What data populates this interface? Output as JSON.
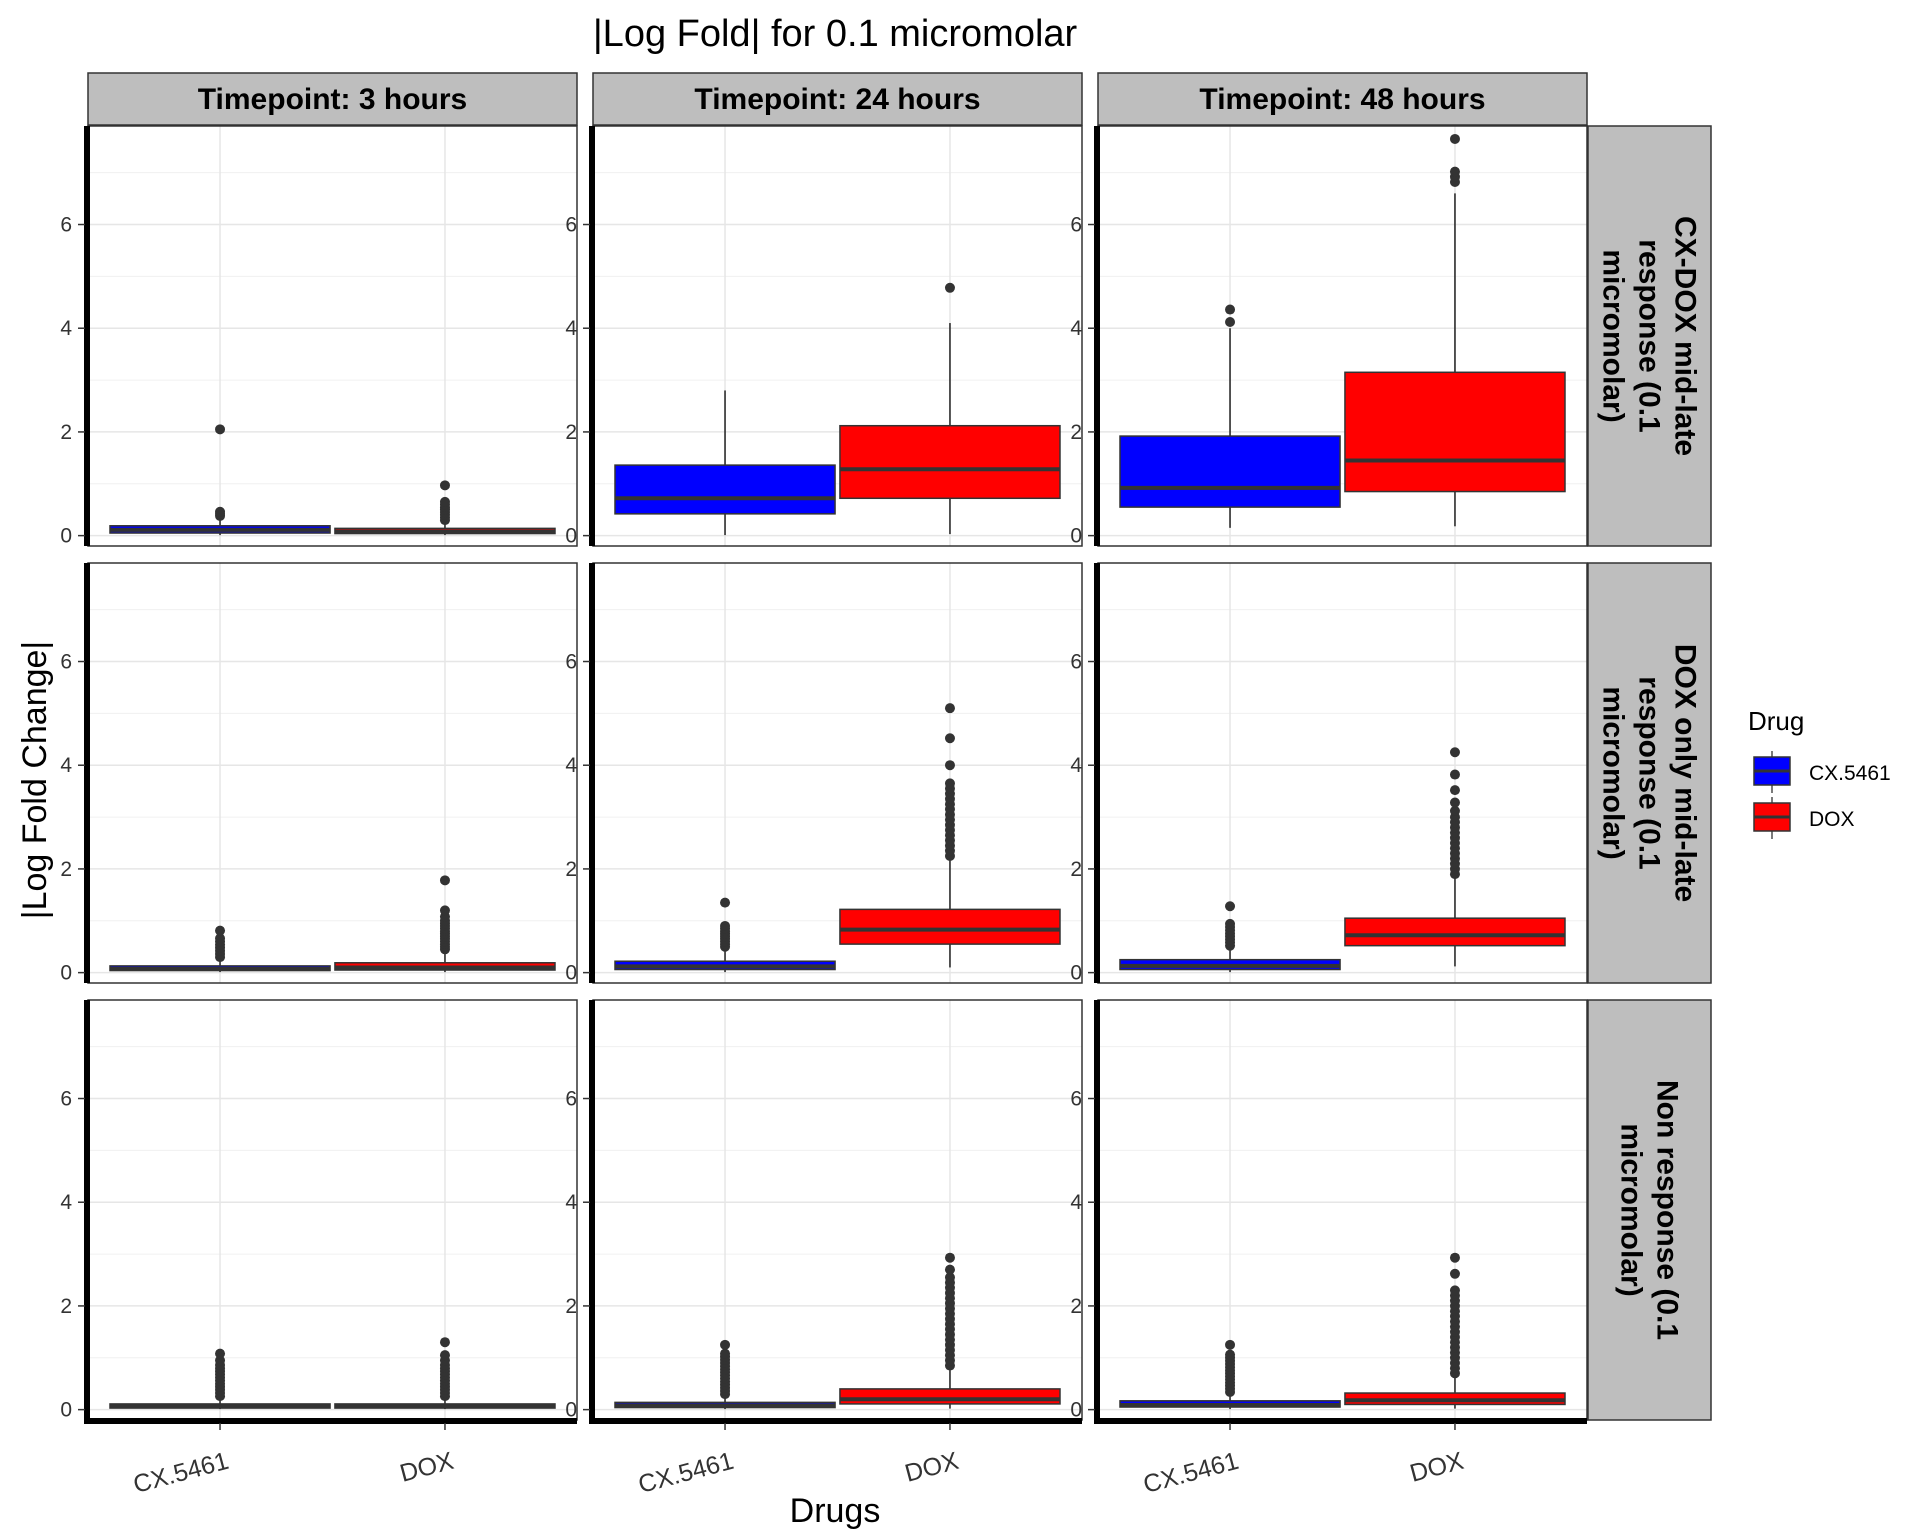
{
  "chart_data": {
    "type": "box",
    "title": "|Log Fold| for 0.1 micromolar",
    "xlabel": "Drugs",
    "ylabel": "|Log Fold Change|",
    "categories": [
      "CX.5461",
      "DOX"
    ],
    "y_ticks": [
      0,
      2,
      4,
      6
    ],
    "ylim": [
      -0.2,
      7.9
    ],
    "grid": true,
    "legend": {
      "title": "Drug",
      "position": "right",
      "items": [
        {
          "label": "CX.5461",
          "color": "#0000ff"
        },
        {
          "label": "DOX",
          "color": "#ff0000"
        }
      ]
    },
    "columns": [
      "Timepoint: 3 hours",
      "Timepoint: 24 hours",
      "Timepoint: 48 hours"
    ],
    "rows": [
      {
        "label": "CX-DOX mid-late response (0.1 micromolar)",
        "lines": [
          "CX-DOX mid-late",
          "response (0.1",
          "micromolar)"
        ]
      },
      {
        "label": "DOX only mid-late response (0.1 micromolar)",
        "lines": [
          "DOX only mid-late",
          "response (0.1",
          "micromolar)"
        ]
      },
      {
        "label": "Non response (0.1 micromolar)",
        "lines": [
          "Non response (0.1",
          "micromolar)"
        ]
      }
    ],
    "panels": [
      [
        [
          {
            "drug": "CX.5461",
            "min": 0.01,
            "q1": 0.05,
            "median": 0.11,
            "q3": 0.19,
            "max": 0.34,
            "outliers": [
              0.38,
              0.42,
              0.46,
              2.05
            ]
          },
          {
            "drug": "DOX",
            "min": 0.01,
            "q1": 0.04,
            "median": 0.08,
            "q3": 0.14,
            "max": 0.26,
            "outliers": [
              0.3,
              0.35,
              0.4,
              0.45,
              0.5,
              0.55,
              0.6,
              0.65,
              0.97
            ]
          }
        ],
        [
          {
            "drug": "CX.5461",
            "min": 0.01,
            "q1": 0.42,
            "median": 0.72,
            "q3": 1.36,
            "max": 2.8,
            "outliers": []
          },
          {
            "drug": "DOX",
            "min": 0.03,
            "q1": 0.72,
            "median": 1.28,
            "q3": 2.12,
            "max": 4.1,
            "outliers": [
              4.78
            ]
          }
        ],
        [
          {
            "drug": "CX.5461",
            "min": 0.15,
            "q1": 0.55,
            "median": 0.92,
            "q3": 1.92,
            "max": 4.0,
            "outliers": [
              4.12,
              4.36
            ]
          },
          {
            "drug": "DOX",
            "min": 0.18,
            "q1": 0.85,
            "median": 1.45,
            "q3": 3.15,
            "max": 6.6,
            "outliers": [
              6.82,
              6.92,
              7.02,
              7.65
            ]
          }
        ]
      ],
      [
        [
          {
            "drug": "CX.5461",
            "min": 0.01,
            "q1": 0.04,
            "median": 0.07,
            "q3": 0.13,
            "max": 0.26,
            "outliers": [
              0.3,
              0.36,
              0.42,
              0.48,
              0.54,
              0.6,
              0.66,
              0.81
            ]
          },
          {
            "drug": "DOX",
            "min": 0.01,
            "q1": 0.05,
            "median": 0.1,
            "q3": 0.19,
            "max": 0.4,
            "outliers": [
              0.45,
              0.5,
              0.55,
              0.6,
              0.65,
              0.7,
              0.75,
              0.8,
              0.85,
              0.9,
              0.95,
              1.0,
              1.08,
              1.2,
              1.78
            ]
          }
        ],
        [
          {
            "drug": "CX.5461",
            "min": 0.01,
            "q1": 0.06,
            "median": 0.12,
            "q3": 0.22,
            "max": 0.45,
            "outliers": [
              0.5,
              0.55,
              0.6,
              0.65,
              0.7,
              0.75,
              0.8,
              0.85,
              0.9,
              1.35
            ]
          },
          {
            "drug": "DOX",
            "min": 0.1,
            "q1": 0.55,
            "median": 0.83,
            "q3": 1.22,
            "max": 2.2,
            "outliers": [
              2.25,
              2.35,
              2.45,
              2.55,
              2.65,
              2.75,
              2.85,
              2.95,
              3.05,
              3.15,
              3.25,
              3.35,
              3.45,
              3.55,
              3.65,
              4.0,
              4.52,
              5.1
            ]
          }
        ],
        [
          {
            "drug": "CX.5461",
            "min": 0.01,
            "q1": 0.06,
            "median": 0.13,
            "q3": 0.25,
            "max": 0.48,
            "outliers": [
              0.52,
              0.58,
              0.64,
              0.7,
              0.76,
              0.82,
              0.88,
              0.94,
              1.28
            ]
          },
          {
            "drug": "DOX",
            "min": 0.12,
            "q1": 0.52,
            "median": 0.72,
            "q3": 1.05,
            "max": 1.85,
            "outliers": [
              1.9,
              2.0,
              2.1,
              2.2,
              2.3,
              2.4,
              2.5,
              2.6,
              2.7,
              2.8,
              2.9,
              3.0,
              3.12,
              3.28,
              3.52,
              3.82,
              4.25
            ]
          }
        ]
      ],
      [
        [
          {
            "drug": "CX.5461",
            "min": 0.01,
            "q1": 0.03,
            "median": 0.06,
            "q3": 0.11,
            "max": 0.22,
            "outliers": [
              0.26,
              0.32,
              0.38,
              0.44,
              0.5,
              0.56,
              0.62,
              0.68,
              0.74,
              0.8,
              0.86,
              0.95,
              1.08
            ]
          },
          {
            "drug": "DOX",
            "min": 0.01,
            "q1": 0.03,
            "median": 0.06,
            "q3": 0.11,
            "max": 0.22,
            "outliers": [
              0.26,
              0.32,
              0.38,
              0.44,
              0.5,
              0.56,
              0.62,
              0.68,
              0.74,
              0.8,
              0.86,
              0.95,
              1.05,
              1.3
            ]
          }
        ],
        [
          {
            "drug": "CX.5461",
            "min": 0.01,
            "q1": 0.04,
            "median": 0.08,
            "q3": 0.14,
            "max": 0.26,
            "outliers": [
              0.3,
              0.36,
              0.42,
              0.48,
              0.54,
              0.6,
              0.66,
              0.72,
              0.78,
              0.84,
              0.9,
              0.96,
              1.02,
              1.08,
              1.25
            ]
          },
          {
            "drug": "DOX",
            "min": 0.02,
            "q1": 0.11,
            "median": 0.2,
            "q3": 0.4,
            "max": 0.8,
            "outliers": [
              0.85,
              0.95,
              1.05,
              1.15,
              1.25,
              1.35,
              1.45,
              1.55,
              1.65,
              1.75,
              1.85,
              1.95,
              2.05,
              2.15,
              2.25,
              2.35,
              2.45,
              2.55,
              2.7,
              2.93
            ]
          }
        ],
        [
          {
            "drug": "CX.5461",
            "min": 0.01,
            "q1": 0.05,
            "median": 0.09,
            "q3": 0.17,
            "max": 0.3,
            "outliers": [
              0.34,
              0.4,
              0.46,
              0.52,
              0.58,
              0.64,
              0.7,
              0.76,
              0.82,
              0.88,
              0.94,
              1.0,
              1.06,
              1.25
            ]
          },
          {
            "drug": "DOX",
            "min": 0.02,
            "q1": 0.1,
            "median": 0.18,
            "q3": 0.32,
            "max": 0.65,
            "outliers": [
              0.7,
              0.8,
              0.9,
              1.0,
              1.1,
              1.2,
              1.3,
              1.4,
              1.5,
              1.6,
              1.7,
              1.8,
              1.9,
              2.0,
              2.1,
              2.2,
              2.3,
              2.62,
              2.93
            ]
          }
        ]
      ]
    ]
  }
}
